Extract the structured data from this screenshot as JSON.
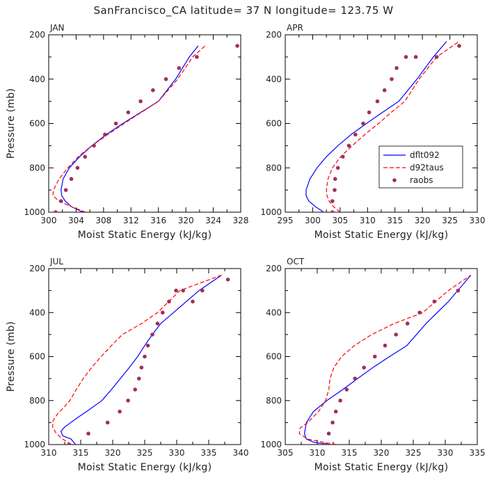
{
  "figure_title": "SanFrancisco_CA  latitude= 37 N longitude= 123.75 W",
  "colors": {
    "dflt092": "#0000ff",
    "d92taus": "#ff0000",
    "raobs": "#a0305a",
    "axis": "#000000",
    "text": "#222222"
  },
  "chart_data": [
    {
      "type": "line",
      "title": "JAN",
      "xlabel": "Moist Static Energy (kJ/kg)",
      "ylabel": "Pressure (mb)",
      "xlim": [
        300,
        328
      ],
      "xticks": [
        300,
        304,
        308,
        312,
        316,
        320,
        324,
        328
      ],
      "ylim": [
        1000,
        200
      ],
      "yticks": [
        200,
        400,
        600,
        800,
        1000
      ],
      "legend": false,
      "series": [
        {
          "name": "dflt092",
          "style": "solid",
          "x": [
            305,
            303.3,
            302.4,
            301.9,
            301.8,
            302.1,
            303.0,
            304.5,
            306.3,
            308.4,
            310.8,
            313.4,
            316.0,
            318.5,
            320.5,
            321.8
          ],
          "y": [
            1000,
            975,
            950,
            925,
            900,
            850,
            800,
            750,
            700,
            650,
            600,
            550,
            500,
            400,
            300,
            250
          ]
        },
        {
          "name": "d92taus",
          "style": "dashed",
          "x": [
            305.4,
            303.3,
            301.5,
            300.6,
            300.7,
            301.5,
            302.8,
            304.3,
            306.3,
            308.6,
            311.0,
            313.5,
            316.0,
            318.8,
            321.0,
            322.8
          ],
          "y": [
            1000,
            975,
            950,
            925,
            900,
            850,
            800,
            750,
            700,
            650,
            600,
            550,
            500,
            400,
            300,
            250
          ]
        },
        {
          "name": "raobs",
          "style": "dots",
          "x": [
            301.0,
            301.8,
            302.5,
            303.3,
            304.2,
            305.3,
            306.6,
            308.2,
            309.8,
            311.6,
            313.4,
            315.2,
            317.1,
            319.0,
            321.6,
            327.5
          ],
          "y": [
            1000,
            950,
            900,
            850,
            800,
            750,
            700,
            650,
            600,
            550,
            500,
            450,
            400,
            350,
            300,
            250
          ]
        }
      ]
    },
    {
      "type": "line",
      "title": "APR",
      "xlabel": "Moist Static Energy (kJ/kg)",
      "ylabel": "",
      "xlim": [
        295,
        330
      ],
      "xticks": [
        295,
        300,
        305,
        310,
        315,
        320,
        325,
        330
      ],
      "ylim": [
        1000,
        200
      ],
      "yticks": [
        200,
        400,
        600,
        800,
        1000
      ],
      "legend": true,
      "legend_position": "right",
      "legend_entries": [
        "dflt092",
        "d92taus",
        "raobs"
      ],
      "series": [
        {
          "name": "dflt092",
          "style": "solid",
          "x": [
            302.0,
            300.5,
            299.3,
            298.8,
            298.8,
            299.5,
            300.8,
            302.5,
            304.6,
            307.0,
            309.8,
            312.7,
            315.7,
            319.0,
            322.0,
            324.4
          ],
          "y": [
            1000,
            975,
            950,
            925,
            900,
            850,
            800,
            750,
            700,
            650,
            600,
            550,
            500,
            400,
            300,
            230
          ]
        },
        {
          "name": "d92taus",
          "style": "dashed",
          "x": [
            305.0,
            303.8,
            303.0,
            302.6,
            302.5,
            302.8,
            303.6,
            305.1,
            307.2,
            309.5,
            312.0,
            314.3,
            316.8,
            319.4,
            322.6,
            326.7
          ],
          "y": [
            1000,
            975,
            950,
            925,
            900,
            850,
            800,
            750,
            700,
            650,
            600,
            550,
            500,
            400,
            300,
            230
          ]
        },
        {
          "name": "raobs",
          "style": "dots",
          "x": [
            303.6,
            303.6,
            304.0,
            304.1,
            304.6,
            305.5,
            306.6,
            307.8,
            309.2,
            310.3,
            311.8,
            313.1,
            314.4,
            315.3,
            317.0,
            318.8,
            322.6,
            326.7
          ],
          "y": [
            1000,
            950,
            900,
            850,
            800,
            750,
            700,
            650,
            600,
            550,
            500,
            450,
            400,
            350,
            300,
            300,
            300,
            250
          ]
        }
      ]
    },
    {
      "type": "line",
      "title": "JUL",
      "xlabel": "Moist Static Energy (kJ/kg)",
      "ylabel": "Pressure (mb)",
      "xlim": [
        310,
        340
      ],
      "xticks": [
        310,
        315,
        320,
        325,
        330,
        335,
        340
      ],
      "ylim": [
        1000,
        200
      ],
      "yticks": [
        200,
        400,
        600,
        800,
        1000
      ],
      "legend": false,
      "series": [
        {
          "name": "dflt092",
          "style": "solid",
          "x": [
            314.2,
            313.5,
            312.2,
            311.9,
            312.5,
            314.4,
            316.4,
            318.3,
            319.8,
            321.2,
            322.6,
            323.9,
            325.0,
            326.2,
            327.5,
            329.5,
            333.5,
            337.0
          ],
          "y": [
            1000,
            975,
            960,
            940,
            920,
            880,
            840,
            800,
            750,
            700,
            650,
            600,
            550,
            500,
            450,
            400,
            300,
            230
          ]
        },
        {
          "name": "d92taus",
          "style": "dashed",
          "x": [
            313.5,
            312.2,
            311.2,
            310.6,
            310.7,
            311.4,
            312.4,
            313.3,
            314.3,
            315.4,
            316.7,
            318.2,
            319.8,
            321.5,
            324.5,
            327.0,
            330.5,
            337.0
          ],
          "y": [
            1000,
            975,
            950,
            920,
            890,
            860,
            830,
            800,
            750,
            700,
            650,
            600,
            550,
            500,
            450,
            400,
            300,
            230
          ]
        },
        {
          "name": "raobs",
          "style": "dots",
          "x": [
            313.2,
            316.2,
            319.2,
            321.1,
            322.4,
            323.5,
            324.1,
            324.5,
            325.0,
            325.5,
            326.2,
            327.0,
            327.8,
            328.8,
            329.9,
            331.0,
            332.5,
            334.0,
            338.0
          ],
          "y": [
            1000,
            950,
            900,
            850,
            800,
            750,
            700,
            650,
            600,
            550,
            500,
            450,
            400,
            350,
            300,
            300,
            350,
            300,
            250
          ]
        }
      ]
    },
    {
      "type": "line",
      "title": "OCT",
      "xlabel": "Moist Static Energy (kJ/kg)",
      "ylabel": "",
      "xlim": [
        305,
        335
      ],
      "xticks": [
        305,
        310,
        315,
        320,
        325,
        330,
        335
      ],
      "ylim": [
        1000,
        200
      ],
      "yticks": [
        200,
        400,
        600,
        800,
        1000
      ],
      "legend": false,
      "series": [
        {
          "name": "dflt092",
          "style": "solid",
          "x": [
            312.0,
            309.5,
            308.3,
            308.0,
            308.3,
            309.4,
            311.5,
            314.0,
            316.3,
            318.7,
            321.3,
            324.0,
            327.0,
            330.5,
            334.0
          ],
          "y": [
            1000,
            990,
            975,
            950,
            900,
            850,
            800,
            750,
            700,
            650,
            600,
            550,
            450,
            350,
            230
          ]
        },
        {
          "name": "d92taus",
          "style": "dashed",
          "x": [
            313.0,
            311.0,
            308.5,
            307.2,
            307.3,
            308.5,
            310.2,
            311.3,
            311.8,
            312.0,
            312.6,
            313.8,
            315.8,
            318.5,
            322.0,
            326.5,
            330.5,
            334.0
          ],
          "y": [
            1000,
            990,
            975,
            950,
            925,
            900,
            850,
            800,
            750,
            700,
            650,
            600,
            550,
            500,
            450,
            400,
            300,
            230
          ]
        },
        {
          "name": "raobs",
          "style": "dots",
          "x": [
            311.3,
            311.8,
            312.4,
            312.9,
            313.6,
            314.6,
            315.9,
            317.3,
            319.0,
            320.6,
            322.3,
            324.1,
            326.0,
            328.3,
            332.0
          ],
          "y": [
            1000,
            950,
            900,
            850,
            800,
            750,
            700,
            650,
            600,
            550,
            500,
            450,
            400,
            350,
            300
          ]
        }
      ]
    }
  ]
}
